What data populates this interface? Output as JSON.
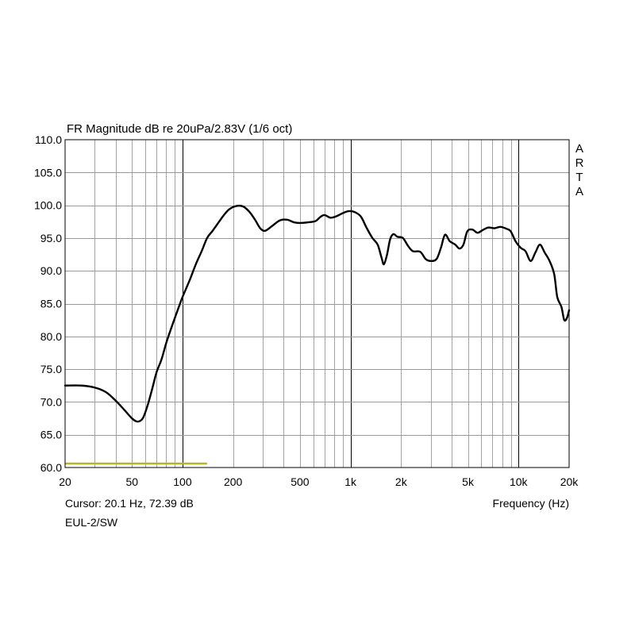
{
  "chart_data": {
    "type": "line",
    "title": "FR Magnitude dB re 20uPa/2.83V (1/6 oct)",
    "xlabel": "Frequency (Hz)",
    "ylabel": "",
    "xscale": "log",
    "xlim": [
      20,
      20000
    ],
    "ylim": [
      60,
      110
    ],
    "grid": true,
    "x_ticks": [
      {
        "value": 20,
        "label": "20"
      },
      {
        "value": 50,
        "label": "50"
      },
      {
        "value": 100,
        "label": "100"
      },
      {
        "value": 200,
        "label": "200"
      },
      {
        "value": 500,
        "label": "500"
      },
      {
        "value": 1000,
        "label": "1k"
      },
      {
        "value": 2000,
        "label": "2k"
      },
      {
        "value": 5000,
        "label": "5k"
      },
      {
        "value": 10000,
        "label": "10k"
      },
      {
        "value": 20000,
        "label": "20k"
      }
    ],
    "y_ticks": [
      {
        "value": 110,
        "label": "110.0"
      },
      {
        "value": 105,
        "label": "105.0"
      },
      {
        "value": 100,
        "label": "100.0"
      },
      {
        "value": 95,
        "label": "95.0"
      },
      {
        "value": 90,
        "label": "90.0"
      },
      {
        "value": 85,
        "label": "85.0"
      },
      {
        "value": 80,
        "label": "80.0"
      },
      {
        "value": 75,
        "label": "75.0"
      },
      {
        "value": 70,
        "label": "70.0"
      },
      {
        "value": 65,
        "label": "65.0"
      },
      {
        "value": 60,
        "label": "60.0"
      }
    ],
    "series": [
      {
        "color": "#000000",
        "points": [
          [
            20,
            72.5
          ],
          [
            25,
            72.5
          ],
          [
            30,
            72.2
          ],
          [
            35,
            71.5
          ],
          [
            40,
            70.2
          ],
          [
            45,
            68.8
          ],
          [
            50,
            67.5
          ],
          [
            54,
            67.0
          ],
          [
            58,
            67.5
          ],
          [
            62,
            69.5
          ],
          [
            66,
            72.0
          ],
          [
            70,
            74.5
          ],
          [
            75,
            76.5
          ],
          [
            80,
            79.0
          ],
          [
            85,
            81.0
          ],
          [
            90,
            82.8
          ],
          [
            100,
            86.0
          ],
          [
            110,
            88.5
          ],
          [
            120,
            91.0
          ],
          [
            130,
            93.0
          ],
          [
            140,
            95.0
          ],
          [
            150,
            96.0
          ],
          [
            160,
            97.0
          ],
          [
            175,
            98.4
          ],
          [
            190,
            99.4
          ],
          [
            210,
            99.9
          ],
          [
            230,
            99.8
          ],
          [
            250,
            99.0
          ],
          [
            270,
            97.8
          ],
          [
            290,
            96.5
          ],
          [
            310,
            96.1
          ],
          [
            340,
            96.8
          ],
          [
            380,
            97.7
          ],
          [
            420,
            97.8
          ],
          [
            460,
            97.4
          ],
          [
            500,
            97.3
          ],
          [
            560,
            97.4
          ],
          [
            620,
            97.6
          ],
          [
            660,
            98.2
          ],
          [
            700,
            98.5
          ],
          [
            760,
            98.1
          ],
          [
            820,
            98.3
          ],
          [
            900,
            98.8
          ],
          [
            970,
            99.1
          ],
          [
            1050,
            99.0
          ],
          [
            1150,
            98.3
          ],
          [
            1250,
            96.5
          ],
          [
            1350,
            95.0
          ],
          [
            1450,
            94.0
          ],
          [
            1530,
            92.0
          ],
          [
            1580,
            91.0
          ],
          [
            1650,
            92.5
          ],
          [
            1720,
            94.8
          ],
          [
            1800,
            95.6
          ],
          [
            1900,
            95.2
          ],
          [
            2050,
            95.0
          ],
          [
            2200,
            93.8
          ],
          [
            2350,
            93.0
          ],
          [
            2600,
            92.9
          ],
          [
            2800,
            91.8
          ],
          [
            3000,
            91.5
          ],
          [
            3250,
            91.8
          ],
          [
            3450,
            93.5
          ],
          [
            3650,
            95.5
          ],
          [
            3900,
            94.5
          ],
          [
            4200,
            94.0
          ],
          [
            4450,
            93.4
          ],
          [
            4700,
            94.0
          ],
          [
            4950,
            96.0
          ],
          [
            5300,
            96.3
          ],
          [
            5700,
            95.8
          ],
          [
            6100,
            96.2
          ],
          [
            6600,
            96.6
          ],
          [
            7200,
            96.5
          ],
          [
            7800,
            96.7
          ],
          [
            8500,
            96.4
          ],
          [
            9000,
            96.0
          ],
          [
            9600,
            94.5
          ],
          [
            10300,
            93.5
          ],
          [
            11000,
            93.0
          ],
          [
            11800,
            91.5
          ],
          [
            12600,
            92.8
          ],
          [
            13400,
            94.0
          ],
          [
            14300,
            92.8
          ],
          [
            15300,
            91.5
          ],
          [
            16300,
            89.5
          ],
          [
            17000,
            86.0
          ],
          [
            18000,
            84.5
          ],
          [
            18700,
            82.5
          ],
          [
            19400,
            82.8
          ],
          [
            20000,
            84.0
          ]
        ]
      }
    ],
    "marker_line": {
      "x_start": 20,
      "x_end": 140,
      "y": 60.6,
      "color": "#b5b52a"
    }
  },
  "cursor": {
    "text": "Cursor: 20.1 Hz, 72.39 dB"
  },
  "measurement": {
    "name": "EUL-2/SW"
  },
  "watermark": {
    "letters": [
      "A",
      "R",
      "T",
      "A"
    ]
  }
}
